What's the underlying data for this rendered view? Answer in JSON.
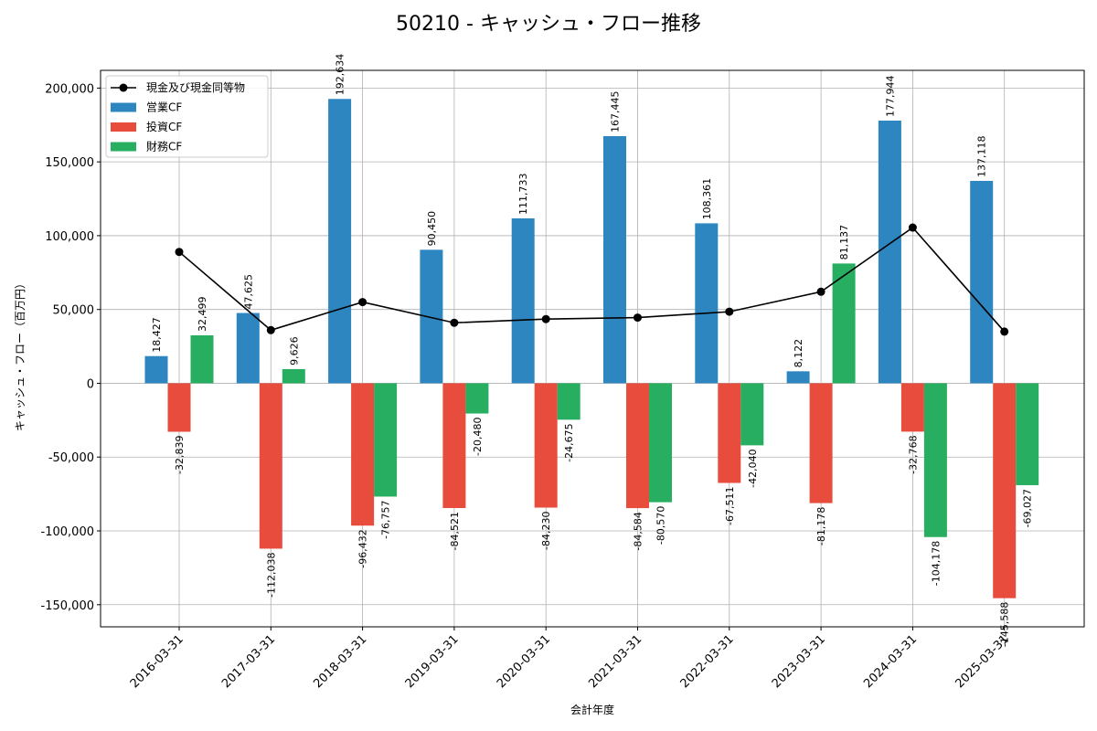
{
  "chart_data": {
    "type": "bar",
    "title": "50210 - キャッシュ・フロー推移",
    "xlabel": "会計年度",
    "ylabel": "キャッシュ・フロー（百万円）",
    "ylim": [
      -165000,
      212000
    ],
    "yticks": [
      -150000,
      -100000,
      -50000,
      0,
      50000,
      100000,
      150000,
      200000
    ],
    "ytick_labels": [
      "-150,000",
      "-100,000",
      "-50,000",
      "0",
      "50,000",
      "100,000",
      "150,000",
      "200,000"
    ],
    "grid": true,
    "legend_position": "top-left",
    "categories": [
      "2016-03-31",
      "2017-03-31",
      "2018-03-31",
      "2019-03-31",
      "2020-03-31",
      "2021-03-31",
      "2022-03-31",
      "2023-03-31",
      "2024-03-31",
      "2025-03-31"
    ],
    "series": [
      {
        "name": "営業CF",
        "kind": "bar",
        "color": "#2e86c1",
        "values": [
          18427,
          47625,
          192634,
          90450,
          111733,
          167445,
          108361,
          8122,
          177944,
          137118
        ],
        "labels": [
          "18,427",
          "47,625",
          "192,634",
          "90,450",
          "111,733",
          "167,445",
          "108,361",
          "8,122",
          "177,944",
          "137,118"
        ]
      },
      {
        "name": "投資CF",
        "kind": "bar",
        "color": "#e74c3c",
        "values": [
          -32839,
          -112038,
          -96432,
          -84521,
          -84230,
          -84584,
          -67511,
          -81178,
          -32768,
          -145588
        ],
        "labels": [
          "-32,839",
          "-112,038",
          "-96,432",
          "-84,521",
          "-84,230",
          "-84,584",
          "-67,511",
          "-81,178",
          "-32,768",
          "-145,588"
        ]
      },
      {
        "name": "財務CF",
        "kind": "bar",
        "color": "#27ae60",
        "values": [
          32499,
          9626,
          -76757,
          -20480,
          -24675,
          -80570,
          -42040,
          81137,
          -104178,
          -69027
        ],
        "labels": [
          "32,499",
          "9,626",
          "-76,757",
          "-20,480",
          "-24,675",
          "-80,570",
          "-42,040",
          "81,137",
          "-104,178",
          "-69,027"
        ]
      },
      {
        "name": "現金及び現金同等物",
        "kind": "line",
        "color": "#000000",
        "values": [
          89000,
          36000,
          55000,
          41000,
          43500,
          44500,
          48500,
          62000,
          105500,
          35000
        ]
      }
    ]
  }
}
